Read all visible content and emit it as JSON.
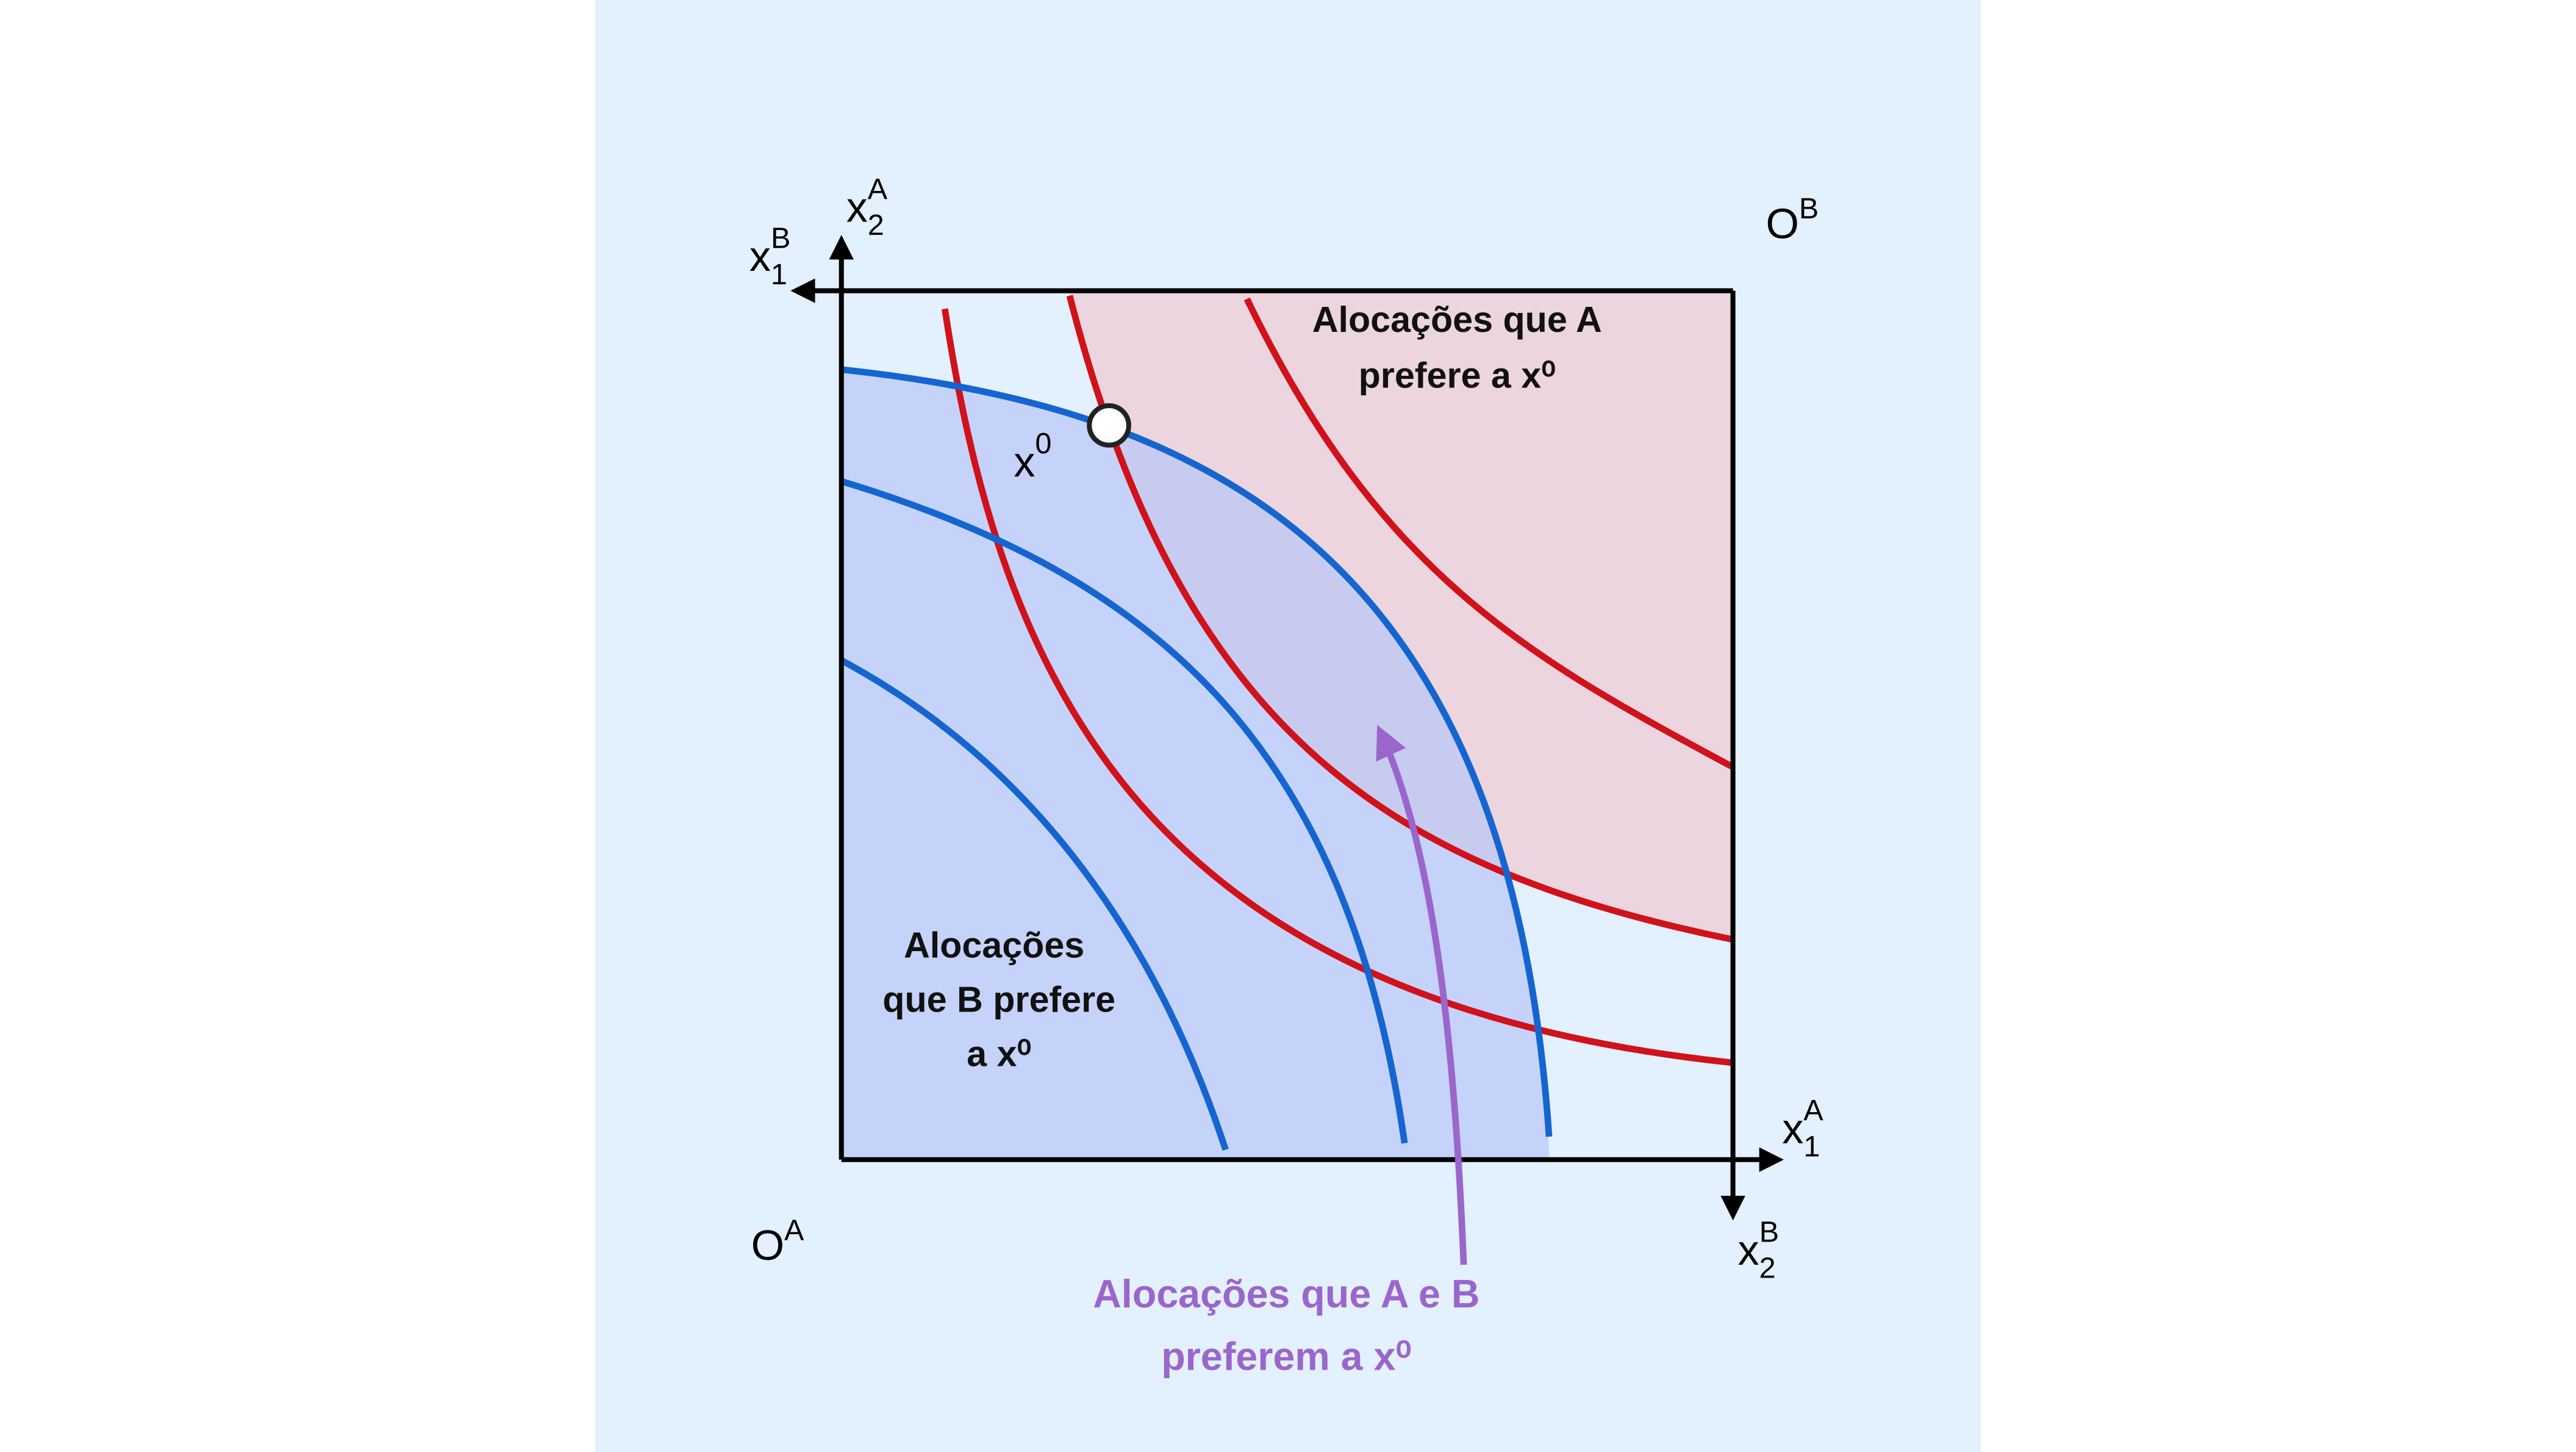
{
  "axis_labels": [
    {
      "base": "x",
      "sub": "2",
      "sup": "A"
    },
    {
      "base": "x",
      "sub": "1",
      "sup": "B"
    },
    {
      "base": "x",
      "sub": "1",
      "sup": "A"
    },
    {
      "base": "x",
      "sub": "2",
      "sup": "B"
    }
  ],
  "origins": [
    {
      "base": "O",
      "sup": "A"
    },
    {
      "base": "O",
      "sup": "B"
    }
  ],
  "point": {
    "base": "x",
    "sup": "0"
  },
  "regions": {
    "a_prefers": [
      "Alocações que A",
      "prefere a x⁰"
    ],
    "b_prefers": [
      "Alocações",
      "que B prefere",
      "a x⁰"
    ],
    "both_prefer": [
      "Alocações que A e B",
      "preferem a x⁰"
    ]
  }
}
